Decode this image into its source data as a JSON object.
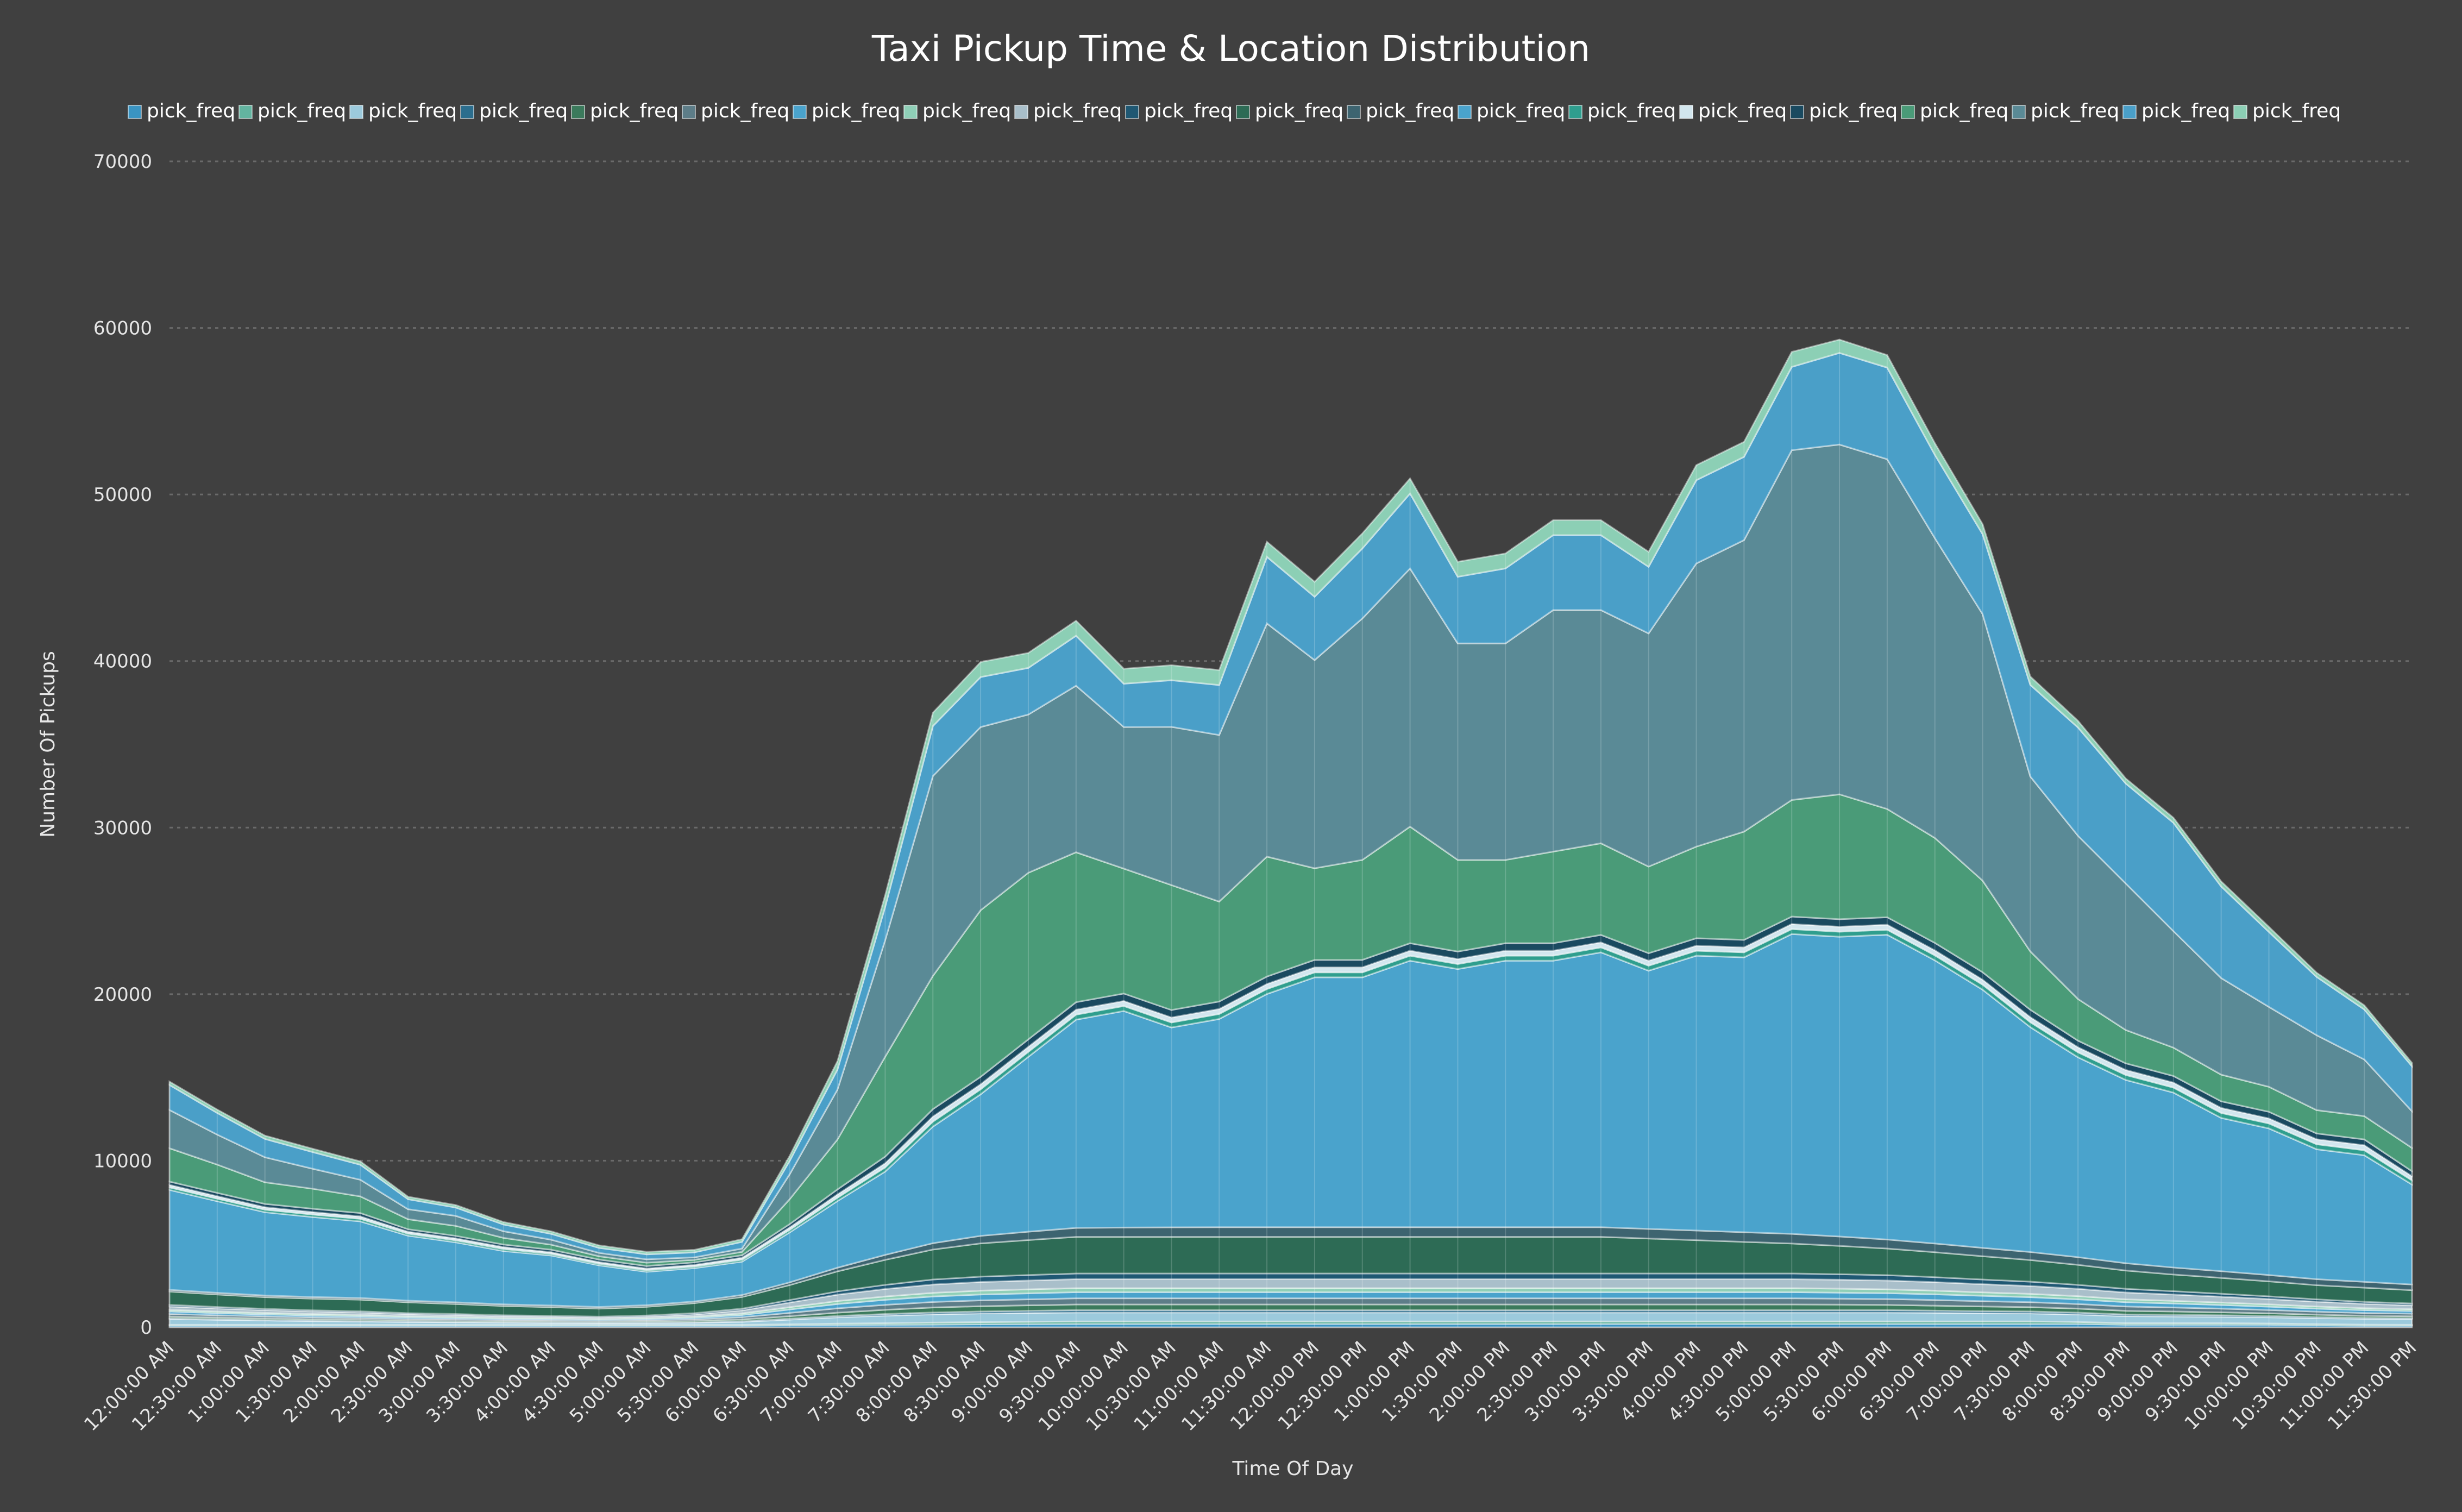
{
  "chart_data": {
    "type": "area",
    "stacked": true,
    "title": "Taxi Pickup Time & Location Distribution",
    "xlabel": "Time Of Day",
    "ylabel": "Number Of Pickups",
    "ylim": [
      0,
      70000
    ],
    "yticks": [
      0,
      10000,
      20000,
      30000,
      40000,
      50000,
      60000,
      70000
    ],
    "grid": true,
    "legend_position": "top",
    "categories": [
      "12:00:00 AM",
      "12:30:00 AM",
      "1:00:00 AM",
      "1:30:00 AM",
      "2:00:00 AM",
      "2:30:00 AM",
      "3:00:00 AM",
      "3:30:00 AM",
      "4:00:00 AM",
      "4:30:00 AM",
      "5:00:00 AM",
      "5:30:00 AM",
      "6:00:00 AM",
      "6:30:00 AM",
      "7:00:00 AM",
      "7:30:00 AM",
      "8:00:00 AM",
      "8:30:00 AM",
      "9:00:00 AM",
      "9:30:00 AM",
      "10:00:00 AM",
      "10:30:00 AM",
      "11:00:00 AM",
      "11:30:00 AM",
      "12:00:00 PM",
      "12:30:00 PM",
      "1:00:00 PM",
      "1:30:00 PM",
      "2:00:00 PM",
      "2:30:00 PM",
      "3:00:00 PM",
      "3:30:00 PM",
      "4:00:00 PM",
      "4:30:00 PM",
      "5:00:00 PM",
      "5:30:00 PM",
      "6:00:00 PM",
      "6:30:00 PM",
      "7:00:00 PM",
      "7:30:00 PM",
      "8:00:00 PM",
      "8:30:00 PM",
      "9:00:00 PM",
      "9:30:00 PM",
      "10:00:00 PM",
      "10:30:00 PM",
      "11:00:00 PM",
      "11:30:00 PM"
    ],
    "series": [
      {
        "name": "pick_freq",
        "color": "#3a94c2",
        "values": [
          100,
          100,
          100,
          100,
          100,
          100,
          100,
          100,
          100,
          100,
          100,
          100,
          100,
          120,
          140,
          150,
          160,
          180,
          190,
          200,
          200,
          200,
          200,
          200,
          200,
          200,
          200,
          200,
          200,
          200,
          200,
          200,
          200,
          200,
          200,
          200,
          200,
          200,
          200,
          200,
          200,
          150,
          150,
          150,
          150,
          120,
          100,
          100
        ]
      },
      {
        "name": "pick_freq",
        "color": "#63b4a0",
        "values": [
          50,
          50,
          50,
          50,
          50,
          50,
          50,
          50,
          50,
          50,
          50,
          50,
          50,
          60,
          80,
          100,
          120,
          130,
          140,
          150,
          150,
          150,
          150,
          150,
          150,
          150,
          150,
          150,
          150,
          150,
          150,
          150,
          150,
          150,
          150,
          150,
          150,
          150,
          150,
          150,
          120,
          100,
          100,
          100,
          80,
          70,
          60,
          50
        ]
      },
      {
        "name": "pick_freq",
        "color": "#9ccadc",
        "values": [
          350,
          300,
          260,
          220,
          200,
          170,
          150,
          130,
          110,
          100,
          110,
          130,
          180,
          280,
          380,
          450,
          500,
          520,
          530,
          540,
          540,
          540,
          540,
          540,
          540,
          540,
          540,
          540,
          540,
          540,
          540,
          540,
          540,
          540,
          540,
          540,
          540,
          520,
          500,
          480,
          450,
          420,
          400,
          380,
          370,
          360,
          350,
          350
        ]
      },
      {
        "name": "pick_freq",
        "color": "#2c6e8e",
        "values": [
          50,
          50,
          50,
          50,
          50,
          40,
          40,
          40,
          40,
          40,
          40,
          40,
          50,
          60,
          80,
          100,
          110,
          120,
          130,
          140,
          140,
          140,
          140,
          140,
          140,
          140,
          140,
          140,
          140,
          140,
          140,
          140,
          140,
          140,
          140,
          140,
          140,
          130,
          120,
          120,
          110,
          100,
          100,
          90,
          80,
          70,
          60,
          50
        ]
      },
      {
        "name": "pick_freq",
        "color": "#3b7a5c",
        "values": [
          100,
          90,
          80,
          70,
          70,
          60,
          60,
          50,
          50,
          50,
          60,
          80,
          100,
          150,
          200,
          250,
          300,
          320,
          330,
          340,
          340,
          340,
          340,
          340,
          340,
          340,
          340,
          340,
          340,
          340,
          340,
          340,
          340,
          340,
          340,
          330,
          320,
          300,
          280,
          260,
          240,
          220,
          200,
          180,
          160,
          140,
          120,
          110
        ]
      },
      {
        "name": "pick_freq",
        "color": "#5d7d88",
        "values": [
          150,
          130,
          120,
          110,
          100,
          90,
          80,
          70,
          70,
          60,
          70,
          90,
          130,
          200,
          260,
          300,
          330,
          350,
          360,
          370,
          370,
          370,
          370,
          370,
          370,
          370,
          370,
          370,
          370,
          370,
          370,
          370,
          370,
          370,
          370,
          360,
          350,
          340,
          320,
          300,
          280,
          260,
          240,
          220,
          200,
          180,
          170,
          160
        ]
      },
      {
        "name": "pick_freq",
        "color": "#4aa3cc",
        "values": [
          150,
          130,
          120,
          110,
          100,
          90,
          80,
          70,
          70,
          60,
          70,
          90,
          130,
          200,
          260,
          300,
          330,
          350,
          360,
          370,
          370,
          370,
          370,
          370,
          370,
          370,
          370,
          370,
          370,
          370,
          370,
          370,
          370,
          370,
          370,
          360,
          350,
          340,
          320,
          300,
          280,
          260,
          240,
          220,
          200,
          180,
          170,
          160
        ]
      },
      {
        "name": "pick_freq",
        "color": "#8fcfb7",
        "values": [
          100,
          100,
          90,
          90,
          80,
          70,
          70,
          60,
          60,
          50,
          60,
          70,
          100,
          140,
          180,
          200,
          220,
          230,
          240,
          240,
          240,
          240,
          240,
          240,
          240,
          240,
          240,
          240,
          240,
          240,
          240,
          240,
          240,
          240,
          240,
          240,
          230,
          220,
          210,
          200,
          190,
          170,
          160,
          150,
          140,
          130,
          120,
          110
        ]
      },
      {
        "name": "pick_freq",
        "color": "#a9bfca",
        "values": [
          200,
          180,
          160,
          150,
          140,
          120,
          110,
          100,
          90,
          80,
          90,
          120,
          180,
          280,
          380,
          450,
          500,
          520,
          530,
          540,
          540,
          540,
          540,
          540,
          540,
          540,
          540,
          540,
          540,
          540,
          540,
          540,
          540,
          540,
          540,
          540,
          530,
          510,
          490,
          470,
          440,
          410,
          380,
          350,
          320,
          290,
          260,
          230
        ]
      },
      {
        "name": "pick_freq",
        "color": "#1f5873",
        "values": [
          100,
          90,
          80,
          70,
          70,
          60,
          60,
          50,
          50,
          50,
          60,
          80,
          100,
          150,
          200,
          250,
          300,
          320,
          330,
          340,
          340,
          340,
          340,
          340,
          340,
          340,
          340,
          340,
          340,
          340,
          340,
          340,
          340,
          340,
          340,
          330,
          320,
          300,
          280,
          260,
          240,
          220,
          200,
          180,
          160,
          140,
          120,
          110
        ]
      },
      {
        "name": "pick_freq",
        "color": "#2d6b55",
        "values": [
          800,
          750,
          700,
          700,
          700,
          650,
          600,
          560,
          520,
          480,
          520,
          600,
          700,
          900,
          1200,
          1500,
          1800,
          2000,
          2100,
          2200,
          2200,
          2200,
          2200,
          2200,
          2200,
          2200,
          2200,
          2200,
          2200,
          2200,
          2200,
          2100,
          2000,
          1900,
          1800,
          1700,
          1600,
          1500,
          1400,
          1300,
          1200,
          1100,
          1000,
          950,
          900,
          850,
          850,
          800
        ]
      },
      {
        "name": "pick_freq",
        "color": "#3d6470",
        "values": [
          100,
          100,
          100,
          100,
          100,
          100,
          100,
          100,
          100,
          100,
          100,
          100,
          120,
          160,
          220,
          300,
          380,
          450,
          500,
          540,
          560,
          570,
          580,
          580,
          580,
          580,
          580,
          580,
          580,
          580,
          580,
          580,
          580,
          580,
          580,
          560,
          540,
          520,
          500,
          480,
          460,
          440,
          420,
          400,
          380,
          360,
          350,
          340
        ]
      },
      {
        "name": "pick_freq",
        "color": "#4aa3cc",
        "values": [
          6000,
          5500,
          5000,
          4800,
          4600,
          3900,
          3600,
          3200,
          3000,
          2500,
          2000,
          2000,
          2000,
          3000,
          4000,
          5000,
          7000,
          8500,
          10500,
          12500,
          13000,
          12000,
          12500,
          14000,
          15000,
          15000,
          16000,
          15500,
          16000,
          16000,
          16500,
          15500,
          16500,
          16500,
          18000,
          18000,
          18300,
          17000,
          15500,
          13500,
          12000,
          11000,
          10500,
          9200,
          8800,
          7800,
          7600,
          6000
        ]
      },
      {
        "name": "pick_freq",
        "color": "#2f9e8e",
        "values": [
          150,
          150,
          150,
          150,
          150,
          120,
          120,
          120,
          100,
          100,
          100,
          100,
          120,
          150,
          200,
          250,
          300,
          300,
          300,
          300,
          300,
          300,
          300,
          300,
          300,
          300,
          300,
          300,
          300,
          300,
          300,
          300,
          300,
          300,
          300,
          300,
          300,
          300,
          300,
          300,
          300,
          300,
          300,
          300,
          300,
          300,
          300,
          250
        ]
      },
      {
        "name": "pick_freq",
        "color": "#d2e6ee",
        "values": [
          150,
          150,
          150,
          150,
          150,
          120,
          120,
          120,
          100,
          100,
          100,
          100,
          120,
          150,
          200,
          250,
          300,
          300,
          300,
          300,
          300,
          300,
          300,
          300,
          300,
          300,
          300,
          300,
          300,
          300,
          300,
          300,
          300,
          300,
          300,
          300,
          300,
          300,
          300,
          300,
          300,
          300,
          300,
          300,
          300,
          300,
          300,
          250
        ]
      },
      {
        "name": "pick_freq",
        "color": "#1a4a60",
        "values": [
          200,
          200,
          200,
          200,
          200,
          150,
          150,
          150,
          150,
          150,
          150,
          150,
          150,
          200,
          300,
          400,
          450,
          450,
          450,
          450,
          450,
          450,
          450,
          450,
          450,
          450,
          450,
          450,
          450,
          450,
          450,
          450,
          450,
          450,
          450,
          450,
          450,
          450,
          450,
          450,
          400,
          400,
          400,
          400,
          400,
          350,
          350,
          300
        ]
      },
      {
        "name": "pick_freq",
        "color": "#4a9b78",
        "values": [
          2000,
          1700,
          1300,
          1200,
          1000,
          600,
          600,
          400,
          300,
          200,
          200,
          150,
          200,
          1500,
          3000,
          6000,
          8000,
          10000,
          10000,
          9000,
          7500,
          7500,
          6000,
          7200,
          5500,
          6000,
          7000,
          5500,
          5000,
          5500,
          5500,
          5200,
          5500,
          6500,
          7000,
          7500,
          6500,
          6300,
          5500,
          3500,
          2500,
          2000,
          1700,
          1600,
          1500,
          1400,
          1400,
          1400
        ]
      },
      {
        "name": "pick_freq",
        "color": "#5a8a96",
        "values": [
          2300,
          1800,
          1500,
          1200,
          1000,
          600,
          600,
          400,
          300,
          200,
          200,
          150,
          200,
          1500,
          3000,
          7000,
          12000,
          11000,
          9500,
          10000,
          8500,
          9500,
          10000,
          14000,
          12500,
          14500,
          15500,
          13000,
          13000,
          14500,
          14000,
          14000,
          17000,
          17500,
          21000,
          21000,
          21000,
          18000,
          16000,
          10500,
          9800,
          8800,
          7000,
          5800,
          4800,
          4500,
          3400,
          2200
        ]
      },
      {
        "name": "pick_freq",
        "color": "#4a9fc8",
        "values": [
          1500,
          1300,
          1100,
          1000,
          900,
          600,
          500,
          400,
          350,
          300,
          300,
          300,
          400,
          800,
          1200,
          2000,
          3000,
          3000,
          2800,
          3000,
          2600,
          2800,
          3000,
          4000,
          3800,
          4200,
          4500,
          4000,
          4500,
          4500,
          4500,
          4000,
          5000,
          5000,
          5000,
          5500,
          5500,
          5000,
          4800,
          5500,
          6500,
          6000,
          6500,
          5500,
          4500,
          3500,
          3000,
          2700
        ]
      },
      {
        "name": "pick_freq",
        "color": "#8ccfb5",
        "values": [
          200,
          200,
          200,
          200,
          200,
          150,
          150,
          150,
          150,
          150,
          150,
          150,
          160,
          300,
          500,
          700,
          800,
          900,
          900,
          900,
          900,
          900,
          900,
          900,
          900,
          900,
          900,
          900,
          900,
          900,
          900,
          900,
          900,
          900,
          900,
          800,
          750,
          700,
          600,
          500,
          400,
          300,
          300,
          300,
          300,
          250,
          250,
          200
        ]
      }
    ]
  }
}
